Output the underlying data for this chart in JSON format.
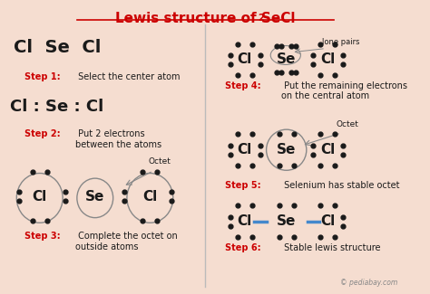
{
  "title": "Lewis structure of SeCl",
  "title_subscript": "2",
  "bg_color": "#f5ddd0",
  "red_color": "#cc0000",
  "black_color": "#1a1a1a",
  "blue_color": "#4488cc",
  "grey_color": "#888888",
  "step1_label": "Step 1:",
  "step1_text": " Select the center atom",
  "step2_label": "Step 2:",
  "step2_text": " Put 2 electrons\nbetween the atoms",
  "step3_label": "Step 3:",
  "step3_text": " Complete the octet on\noutside atoms",
  "step4_label": "Step 4:",
  "step4_text": " Put the remaining electrons\non the central atom",
  "step5_label": "Step 5:",
  "step5_text": " Selenium has stable octet",
  "step6_label": "Step 6:",
  "step6_text": " Stable lewis structure",
  "watermark": "© pediabay.com"
}
